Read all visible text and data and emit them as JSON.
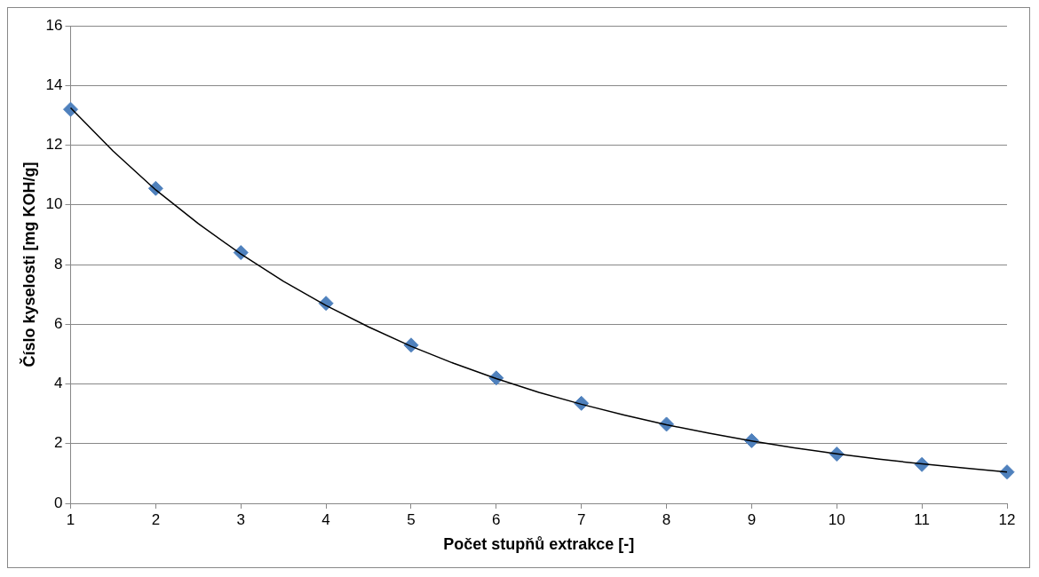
{
  "chart_data": {
    "type": "scatter",
    "xlabel": "Počet stupňů extrakce [-]",
    "ylabel": "Číslo kyselosti [mg KOH/g]",
    "x": [
      1,
      2,
      3,
      4,
      5,
      6,
      7,
      8,
      9,
      10,
      11,
      12
    ],
    "series": [
      {
        "color": "#4f81bd",
        "marker": "diamond",
        "values": [
          13.2,
          10.55,
          8.4,
          6.7,
          5.3,
          4.2,
          3.35,
          2.65,
          2.1,
          1.65,
          1.3,
          1.05
        ]
      },
      {
        "type": "line",
        "color": "#000000",
        "marker": "none",
        "line_style": "solid",
        "x": [
          1,
          1.5,
          2,
          2.5,
          3,
          3.5,
          4,
          4.5,
          5,
          5.5,
          6,
          6.5,
          7,
          7.5,
          8,
          8.5,
          9,
          9.5,
          10,
          10.5,
          11,
          11.5,
          12
        ],
        "values": [
          13.25,
          11.8,
          10.5,
          9.37,
          8.35,
          7.44,
          6.63,
          5.91,
          5.26,
          4.69,
          4.18,
          3.72,
          3.32,
          2.96,
          2.63,
          2.35,
          2.09,
          1.86,
          1.66,
          1.48,
          1.32,
          1.18,
          1.05
        ]
      }
    ],
    "xlim": [
      1,
      12
    ],
    "xticks": [
      1,
      2,
      3,
      4,
      5,
      6,
      7,
      8,
      9,
      10,
      11,
      12
    ],
    "ylim": [
      0,
      16
    ],
    "yticks": [
      0,
      2,
      4,
      6,
      8,
      10,
      12,
      14,
      16
    ],
    "grid": "y",
    "legend": false
  }
}
